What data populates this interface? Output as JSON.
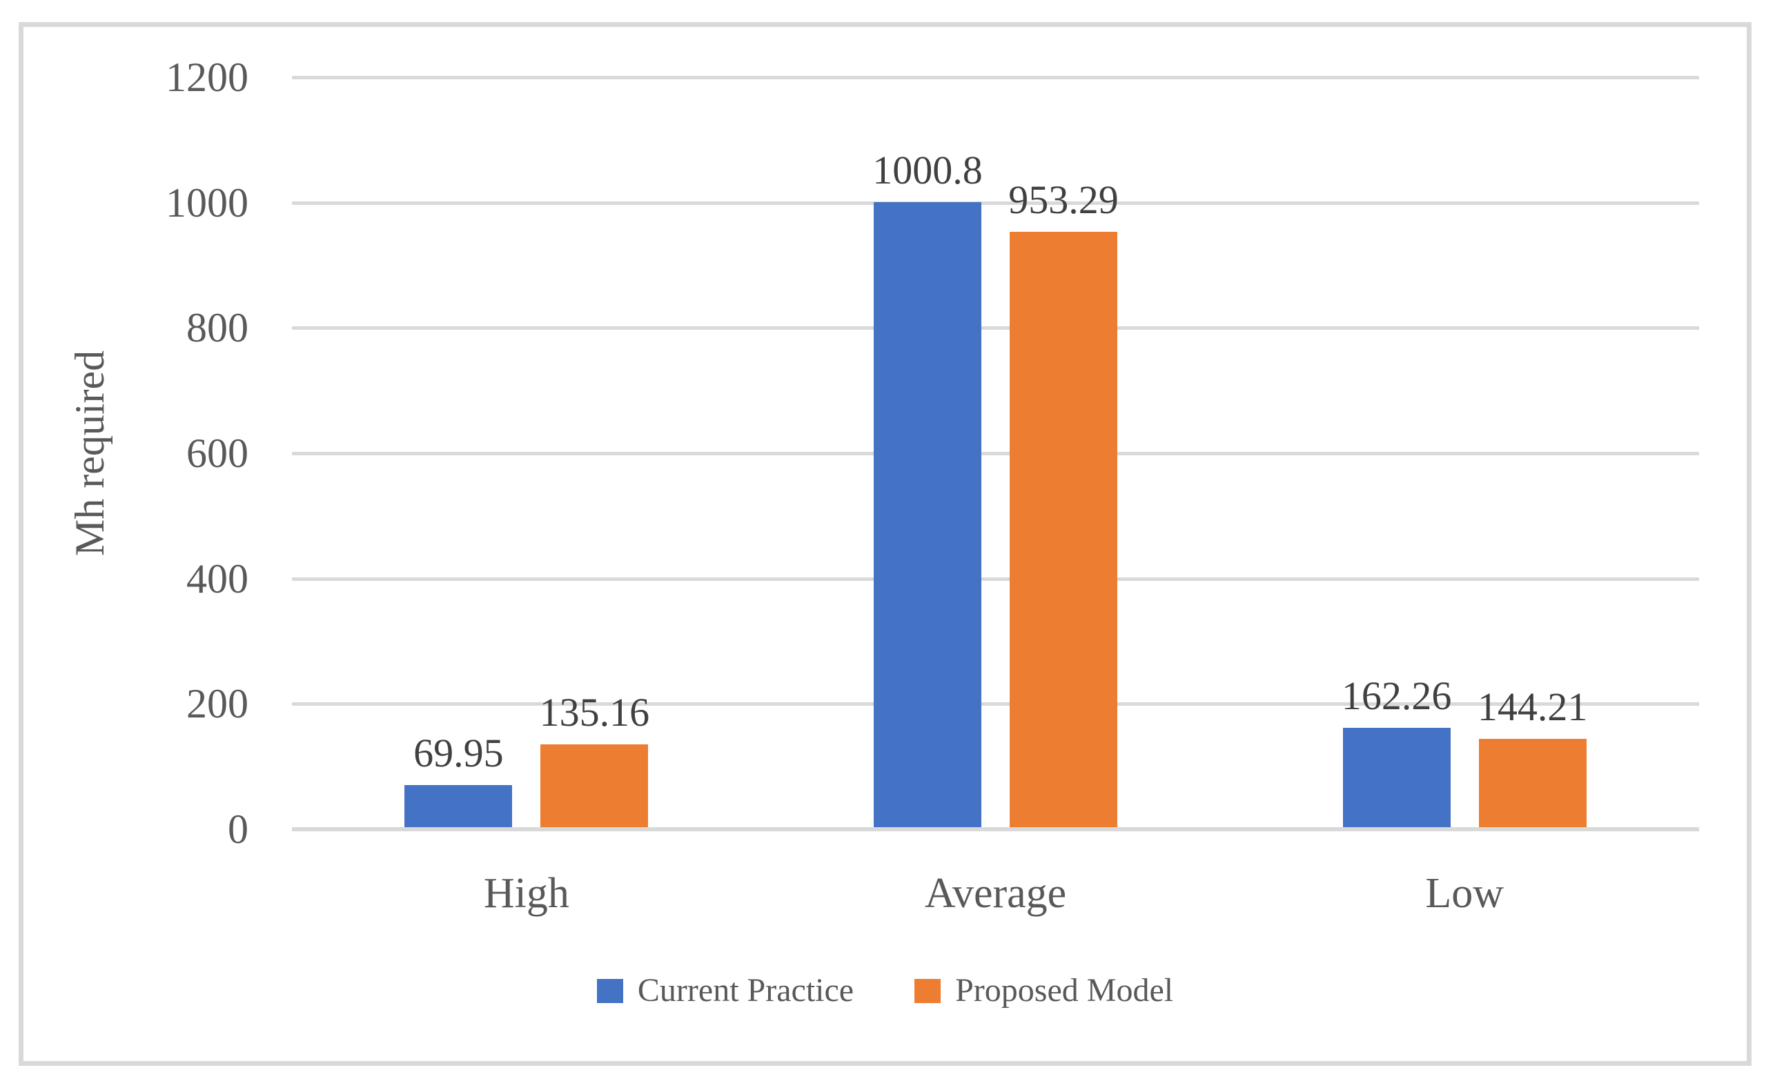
{
  "chart_data": {
    "type": "bar",
    "title": "",
    "xlabel": "",
    "ylabel": "Mh required",
    "categories": [
      "High",
      "Average",
      "Low"
    ],
    "series": [
      {
        "name": "Current Practice",
        "color": "#4472C4",
        "values": [
          69.95,
          1000.8,
          162.26
        ],
        "labels": [
          "69.95",
          "1000.8",
          "162.26"
        ]
      },
      {
        "name": "Proposed Model",
        "color": "#ED7D31",
        "values": [
          135.16,
          953.29,
          144.21
        ],
        "labels": [
          "135.16",
          "953.29",
          "144.21"
        ]
      }
    ],
    "ylim": [
      0,
      1200
    ],
    "yticks": [
      0,
      200,
      400,
      600,
      800,
      1000,
      1200
    ],
    "grid": true,
    "data_labels_shown": true,
    "legend_position": "bottom"
  },
  "colors": {
    "series1": "#4472C4",
    "series2": "#ED7D31",
    "gridline": "#D9D9D9",
    "frame_border": "#D9D9D9",
    "tick_text": "#595959",
    "label_text": "#404040"
  }
}
